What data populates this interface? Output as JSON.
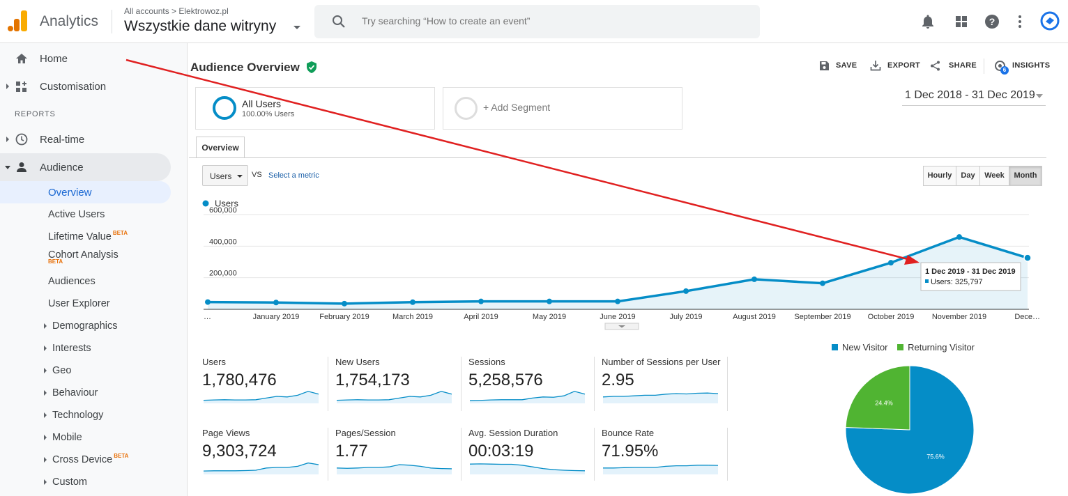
{
  "header": {
    "app_name": "Analytics",
    "account_crumb": "All accounts > Elektrowoz.pl",
    "view_name": "Wszystkie dane witryny",
    "search_placeholder": "Try searching “How to create an event”"
  },
  "colors": {
    "ga_blue": "#058dc7",
    "ga_green": "#50b432",
    "accent_orange": "#f9ab00",
    "logo_orange": "#e37400",
    "annotation_red": "#e02020"
  },
  "sidebar": {
    "home": "Home",
    "customisation": "Customisation",
    "reports_heading": "REPORTS",
    "realtime": "Real-time",
    "audience": "Audience",
    "items": [
      "Overview",
      "Active Users",
      "Lifetime Value",
      "Cohort Analysis",
      "Audiences",
      "User Explorer",
      "Demographics",
      "Interests",
      "Geo",
      "Behaviour",
      "Technology",
      "Mobile",
      "Cross Device",
      "Custom"
    ],
    "beta": "BETA"
  },
  "page": {
    "title": "Audience Overview",
    "actions": {
      "save": "SAVE",
      "export": "EXPORT",
      "share": "SHARE",
      "insights": "INSIGHTS",
      "insights_badge": "6"
    }
  },
  "segments": {
    "all_users": "All Users",
    "all_users_sub": "100.00% Users",
    "add_segment": "+ Add Segment"
  },
  "date_range": "1 Dec 2018 - 31 Dec 2019",
  "tabs": {
    "overview": "Overview"
  },
  "controls": {
    "metric": "Users",
    "vs": "VS",
    "select_metric": "Select a metric",
    "granularity": [
      "Hourly",
      "Day",
      "Week",
      "Month"
    ],
    "granularity_selected": "Month"
  },
  "chart_data": {
    "type": "line",
    "series": [
      {
        "name": "Users",
        "values": [
          46000,
          43000,
          36000,
          45000,
          50000,
          50000,
          50000,
          115000,
          190000,
          165000,
          295000,
          458000,
          325797
        ]
      }
    ],
    "x": [
      "…",
      "January 2019",
      "February 2019",
      "March 2019",
      "April 2019",
      "May 2019",
      "June 2019",
      "July 2019",
      "August 2019",
      "September 2019",
      "October 2019",
      "November 2019",
      "Dece…"
    ],
    "y_ticks": [
      "200,000",
      "400,000",
      "600,000"
    ],
    "ylim": [
      0,
      600000
    ],
    "tooltip": {
      "title": "1 Dec 2019 - 31 Dec 2019",
      "label": "Users: 325,797"
    }
  },
  "scorecards": [
    {
      "label": "Users",
      "value": "1,780,476"
    },
    {
      "label": "New Users",
      "value": "1,754,173"
    },
    {
      "label": "Sessions",
      "value": "5,258,576"
    },
    {
      "label": "Number of Sessions per User",
      "value": "2.95"
    },
    {
      "label": "Page Views",
      "value": "9,303,724"
    },
    {
      "label": "Pages/Session",
      "value": "1.77"
    },
    {
      "label": "Avg. Session Duration",
      "value": "00:03:19"
    },
    {
      "label": "Bounce Rate",
      "value": "71.95%"
    }
  ],
  "pie": {
    "type": "pie",
    "series": [
      {
        "name": "New Visitor",
        "value": 75.6,
        "label": "75.6%"
      },
      {
        "name": "Returning Visitor",
        "value": 24.4,
        "label": "24.4%"
      }
    ]
  }
}
